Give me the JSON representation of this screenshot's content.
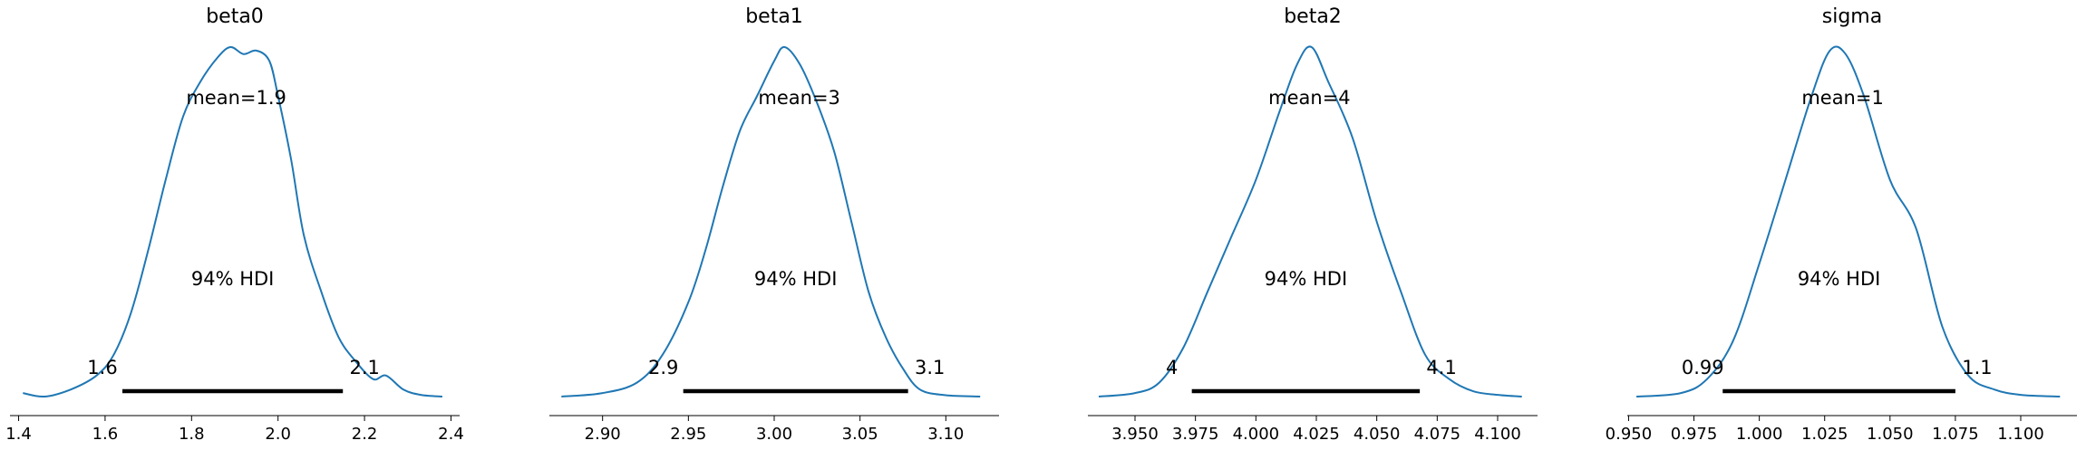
{
  "chart_data": [
    {
      "type": "density",
      "title": "beta0",
      "mean_label": "mean=1.9",
      "hdi_label": "94% HDI",
      "hdi": [
        1.64,
        2.15
      ],
      "hdi_low_label": "1.6",
      "hdi_high_label": "2.1",
      "xlim": [
        1.38,
        2.42
      ],
      "xticks": [
        1.4,
        1.6,
        1.8,
        2.0,
        2.2,
        2.4
      ],
      "xtick_labels": [
        "1.4",
        "1.6",
        "1.8",
        "2.0",
        "2.2",
        "2.4"
      ],
      "density": {
        "x": [
          1.41,
          1.46,
          1.52,
          1.58,
          1.62,
          1.66,
          1.7,
          1.74,
          1.78,
          1.82,
          1.86,
          1.89,
          1.92,
          1.95,
          1.98,
          2.0,
          2.03,
          2.06,
          2.1,
          2.14,
          2.18,
          2.22,
          2.25,
          2.29,
          2.33,
          2.38
        ],
        "y": [
          0.01,
          0.0,
          0.02,
          0.06,
          0.12,
          0.24,
          0.42,
          0.62,
          0.8,
          0.9,
          0.97,
          1.0,
          0.98,
          0.99,
          0.96,
          0.86,
          0.68,
          0.46,
          0.3,
          0.17,
          0.1,
          0.05,
          0.06,
          0.02,
          0.005,
          0.0
        ]
      }
    },
    {
      "type": "density",
      "title": "beta1",
      "mean_label": "mean=3",
      "hdi_label": "94% HDI",
      "hdi": [
        2.947,
        3.078
      ],
      "hdi_low_label": "2.9",
      "hdi_high_label": "3.1",
      "xlim": [
        2.869,
        3.131
      ],
      "xticks": [
        2.9,
        2.95,
        3.0,
        3.05,
        3.1
      ],
      "xtick_labels": [
        "2.90",
        "2.95",
        "3.00",
        "3.05",
        "3.10"
      ],
      "density": {
        "x": [
          2.876,
          2.9,
          2.92,
          2.935,
          2.95,
          2.96,
          2.97,
          2.98,
          2.99,
          3.0,
          3.006,
          3.015,
          3.025,
          3.035,
          3.045,
          3.055,
          3.065,
          3.075,
          3.085,
          3.1,
          3.12
        ],
        "y": [
          0.0,
          0.01,
          0.04,
          0.12,
          0.27,
          0.42,
          0.6,
          0.76,
          0.86,
          0.96,
          1.0,
          0.95,
          0.84,
          0.7,
          0.5,
          0.3,
          0.17,
          0.08,
          0.02,
          0.004,
          0.0
        ]
      }
    },
    {
      "type": "density",
      "title": "beta2",
      "mean_label": "mean=4",
      "hdi_label": "94% HDI",
      "hdi": [
        3.9735,
        4.0678
      ],
      "hdi_low_label": "4",
      "hdi_high_label": "4.1",
      "xlim": [
        3.9305,
        4.1165
      ],
      "xticks": [
        3.95,
        3.975,
        4.0,
        4.025,
        4.05,
        4.075,
        4.1
      ],
      "xtick_labels": [
        "3.950",
        "3.975",
        "4.000",
        "4.025",
        "4.050",
        "4.075",
        "4.100"
      ],
      "density": {
        "x": [
          3.935,
          3.95,
          3.96,
          3.97,
          3.98,
          3.99,
          4.0,
          4.01,
          4.017,
          4.023,
          4.03,
          4.04,
          4.05,
          4.06,
          4.07,
          4.08,
          4.09,
          4.1,
          4.11
        ],
        "y": [
          0.0,
          0.01,
          0.04,
          0.14,
          0.3,
          0.46,
          0.62,
          0.82,
          0.95,
          1.0,
          0.9,
          0.74,
          0.5,
          0.3,
          0.12,
          0.05,
          0.015,
          0.005,
          0.0
        ]
      }
    },
    {
      "type": "density",
      "title": "sigma",
      "mean_label": "mean=1",
      "hdi_label": "94% HDI",
      "hdi": [
        0.986,
        1.075
      ],
      "hdi_low_label": "0.99",
      "hdi_high_label": "1.1",
      "xlim": [
        0.9495,
        1.1215
      ],
      "xticks": [
        0.95,
        0.975,
        1.0,
        1.025,
        1.05,
        1.075,
        1.1
      ],
      "xtick_labels": [
        "0.950",
        "0.975",
        "1.000",
        "1.025",
        "1.050",
        "1.075",
        "1.100"
      ],
      "density": {
        "x": [
          0.953,
          0.97,
          0.98,
          0.99,
          1.0,
          1.01,
          1.02,
          1.027,
          1.033,
          1.04,
          1.05,
          1.06,
          1.07,
          1.08,
          1.09,
          1.1,
          1.115
        ],
        "y": [
          0.0,
          0.01,
          0.05,
          0.16,
          0.38,
          0.62,
          0.86,
          0.99,
          0.98,
          0.86,
          0.62,
          0.48,
          0.2,
          0.06,
          0.02,
          0.005,
          0.0
        ]
      }
    }
  ]
}
